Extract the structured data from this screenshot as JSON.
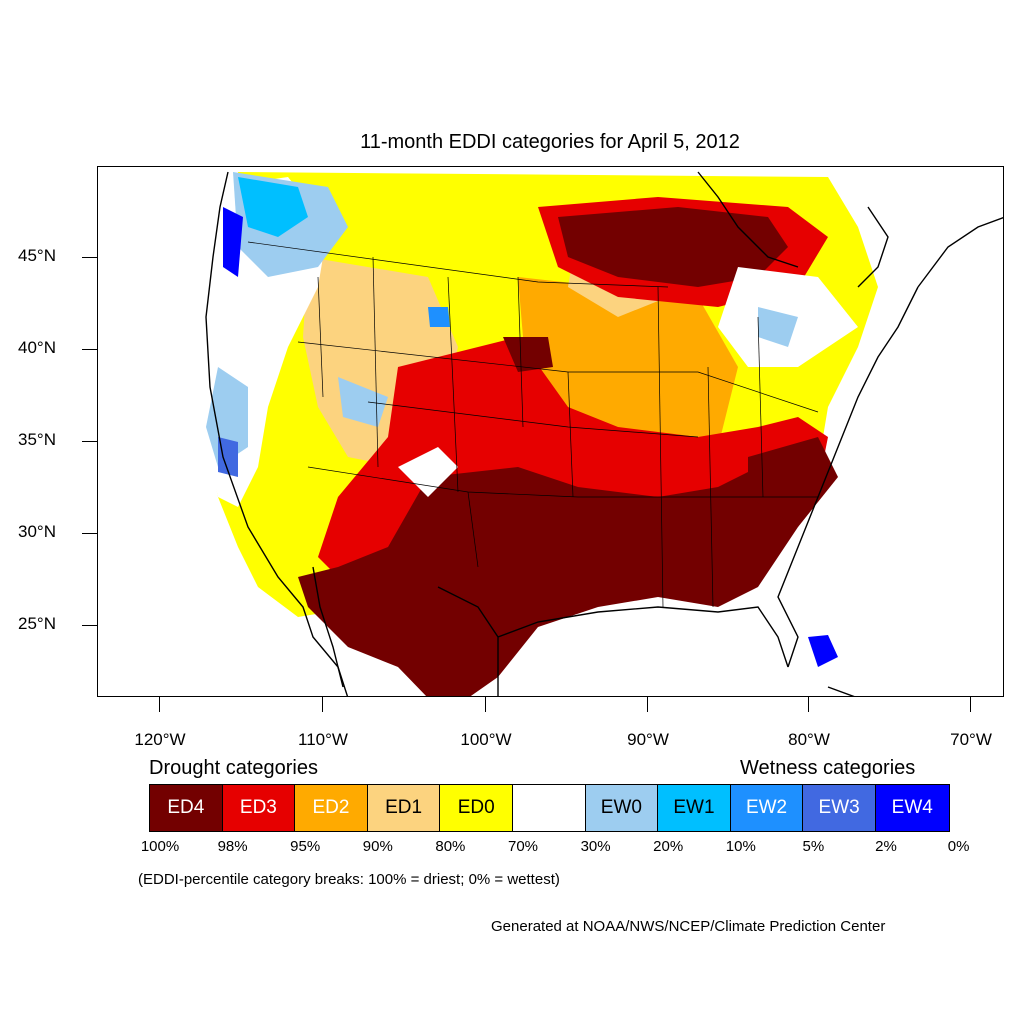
{
  "title": "11-month EDDI categories for April 5, 2012",
  "lat_labels": [
    "45°N",
    "40°N",
    "35°N",
    "30°N",
    "25°N"
  ],
  "lon_labels": [
    "120°W",
    "110°W",
    "100°W",
    "90°W",
    "80°W",
    "70°W"
  ],
  "drought_heading": "Drought categories",
  "wetness_heading": "Wetness categories",
  "legend": [
    {
      "label": "ED4",
      "color": "#730000",
      "text_color": "#ffffff"
    },
    {
      "label": "ED3",
      "color": "#e60000",
      "text_color": "#ffffff"
    },
    {
      "label": "ED2",
      "color": "#ffaa00",
      "text_color": "#ffffff"
    },
    {
      "label": "ED1",
      "color": "#fcd37f",
      "text_color": "#000000"
    },
    {
      "label": "ED0",
      "color": "#ffff00",
      "text_color": "#000000"
    },
    {
      "label": "",
      "color": "#ffffff",
      "text_color": "#000000"
    },
    {
      "label": "EW0",
      "color": "#9dcdf0",
      "text_color": "#000000"
    },
    {
      "label": "EW1",
      "color": "#00bfff",
      "text_color": "#000000"
    },
    {
      "label": "EW2",
      "color": "#1e90ff",
      "text_color": "#ffffff"
    },
    {
      "label": "EW3",
      "color": "#4169e1",
      "text_color": "#ffffff"
    },
    {
      "label": "EW4",
      "color": "#0000ff",
      "text_color": "#ffffff"
    }
  ],
  "breaks": [
    "100%",
    "98%",
    "95%",
    "90%",
    "80%",
    "70%",
    "30%",
    "20%",
    "10%",
    "5%",
    "2%",
    "0%"
  ],
  "note": "(EDDI-percentile category breaks: 100% = driest; 0% = wettest)",
  "credit": "Generated at NOAA/NWS/NCEP/Climate Prediction Center"
}
